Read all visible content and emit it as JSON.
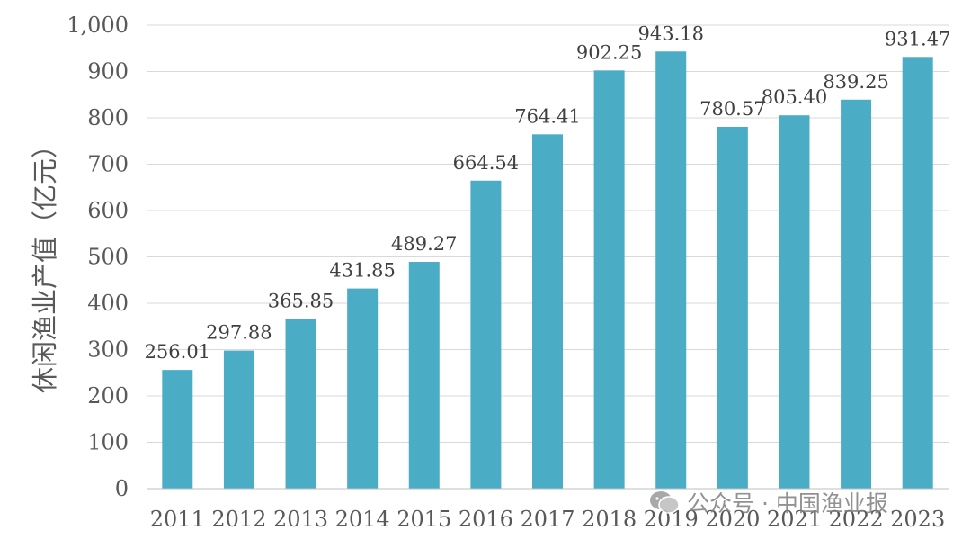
{
  "chart_data": {
    "type": "bar",
    "categories": [
      "2011",
      "2012",
      "2013",
      "2014",
      "2015",
      "2016",
      "2017",
      "2018",
      "2019",
      "2020",
      "2021",
      "2022",
      "2023"
    ],
    "values": [
      256.01,
      297.88,
      365.85,
      431.85,
      489.27,
      664.54,
      764.41,
      902.25,
      943.18,
      780.57,
      805.4,
      839.25,
      931.47
    ],
    "data_labels": [
      "256.01",
      "297.88",
      "365.85",
      "431.85",
      "489.27",
      "664.54",
      "764.41",
      "902.25",
      "943.18",
      "780.57",
      "805.40",
      "839.25",
      "931.47"
    ],
    "title": "",
    "xlabel": "",
    "ylabel": "休闲渔业产值（亿元）",
    "ylim": [
      0,
      1000
    ],
    "yticks": [
      0,
      100,
      200,
      300,
      400,
      500,
      600,
      700,
      800,
      900,
      1000
    ],
    "ytick_labels": [
      "0",
      "100",
      "200",
      "300",
      "400",
      "500",
      "600",
      "700",
      "800",
      "900",
      "1,000"
    ],
    "grid": true,
    "legend": "none",
    "bar_color": "#4bacc6"
  },
  "watermark": {
    "text": "公众号 · 中国渔业报",
    "icon": "wechat-icon"
  }
}
